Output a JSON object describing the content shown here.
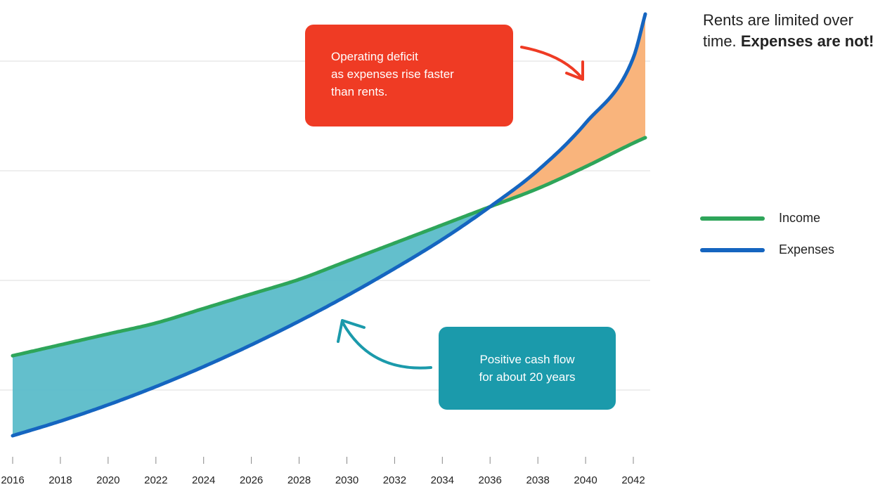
{
  "headline": {
    "plain": "Rents are limited over time.",
    "bold": "Expenses are not!"
  },
  "colors": {
    "income": "#2ea55a",
    "expenses": "#1565c0",
    "surplus_fill": "#5bbcc9",
    "deficit_fill": "#f9b075",
    "deficit_callout": "#ef3b24",
    "surplus_callout": "#1b9aab",
    "grid": "#dddddd"
  },
  "callouts": {
    "deficit": {
      "lines": [
        "Operating deficit",
        "as expenses rise faster",
        "than rents."
      ]
    },
    "surplus": {
      "lines": [
        "Positive cash flow",
        "for about 20 years"
      ]
    }
  },
  "chart_data": {
    "type": "area",
    "x_ticks": [
      "2016",
      "2018",
      "2020",
      "2022",
      "2024",
      "2026",
      "2028",
      "2030",
      "2032",
      "2034",
      "2036",
      "2038",
      "2040",
      "2042"
    ],
    "xlim": [
      2016,
      2042.5
    ],
    "grid": true,
    "legend_position": "right",
    "series": [
      {
        "name": "Income",
        "x": [
          2016,
          2018,
          2020,
          2022,
          2024,
          2026,
          2028,
          2030,
          2032,
          2034,
          2036,
          2038,
          2040,
          2042,
          2042.5
        ],
        "values": [
          22,
          25,
          28,
          31,
          35,
          39,
          43,
          48,
          53,
          58,
          63,
          68,
          74,
          80.5,
          82
        ]
      },
      {
        "name": "Expenses",
        "x": [
          2016,
          2018,
          2020,
          2022,
          2024,
          2026,
          2028,
          2030,
          2032,
          2034,
          2036,
          2038,
          2040,
          2042,
          2042.5
        ],
        "values": [
          0,
          4,
          8.5,
          13.5,
          19,
          25,
          31.5,
          38.5,
          46,
          54,
          63,
          73,
          86,
          104,
          116
        ]
      }
    ]
  }
}
